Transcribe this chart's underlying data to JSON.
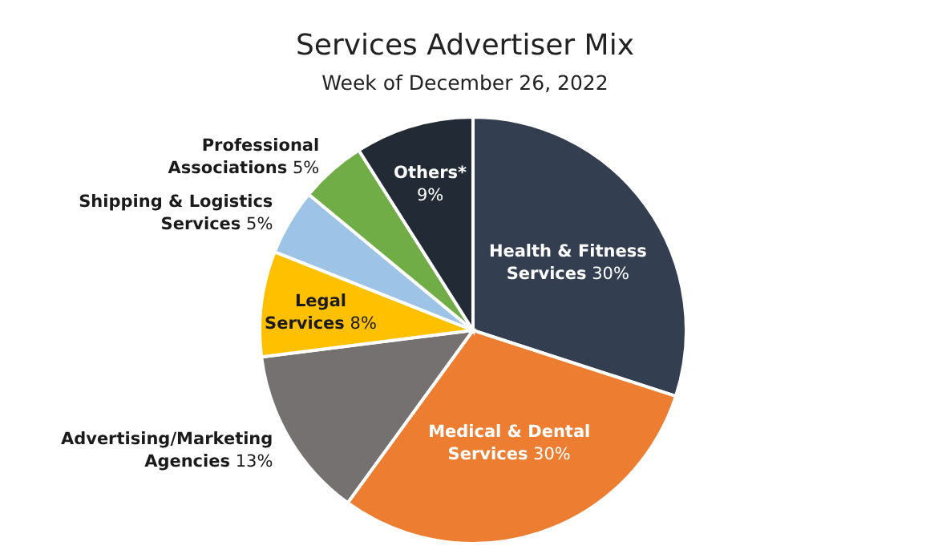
{
  "chart_data": {
    "type": "pie",
    "title": "Services Advertiser Mix",
    "subtitle": "Week of December 26, 2022",
    "categories": [
      "Health & Fitness Services",
      "Medical & Dental Services",
      "Advertising/Marketing Agencies",
      "Legal Services",
      "Shipping & Logistics Services",
      "Professional Associations",
      "Others*"
    ],
    "values": [
      30,
      30,
      13,
      8,
      5,
      5,
      9
    ],
    "value_labels": [
      "30%",
      "30%",
      "13%",
      "8%",
      "5%",
      "5%",
      "9%"
    ],
    "colors": [
      "#333f50",
      "#ed7d31",
      "#767171",
      "#ffc000",
      "#9dc3e6",
      "#70ad47",
      "#222a35"
    ],
    "legend": false
  }
}
